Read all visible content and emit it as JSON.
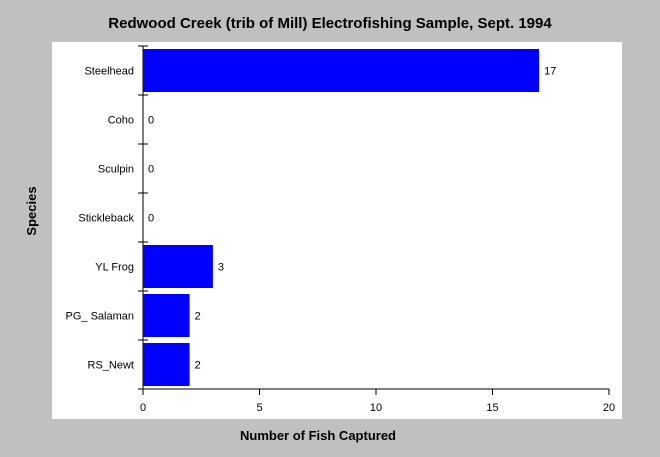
{
  "chart_data": {
    "type": "bar",
    "orientation": "horizontal",
    "title": "Redwood Creek (trib of Mill) Electrofishing Sample, Sept. 1994",
    "xlabel": "Number of Fish Captured",
    "ylabel": "Species",
    "categories": [
      "Steelhead",
      "Coho",
      "Sculpin",
      "Stickleback",
      "YL Frog",
      "PG_ Salaman",
      "RS_Newt"
    ],
    "values": [
      17,
      0,
      0,
      0,
      3,
      2,
      2
    ],
    "xlim": [
      0,
      20
    ],
    "xticks": [
      "0",
      "5",
      "10",
      "15",
      "20"
    ],
    "grid": false,
    "legend": "none",
    "colors": {
      "background": "#c0c0c0",
      "plot_area": "#ffffff",
      "bar": "#0000ff",
      "axis": "#000000"
    }
  }
}
